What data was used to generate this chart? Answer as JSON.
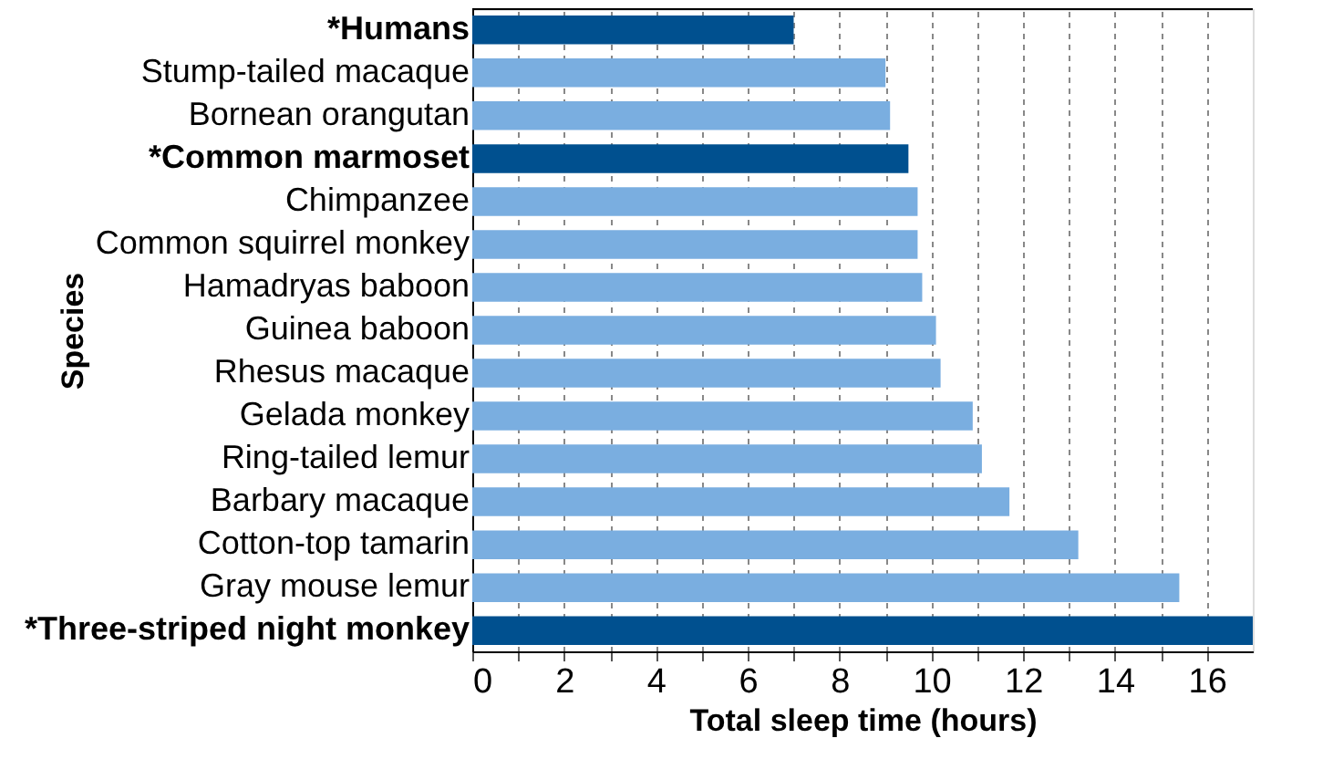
{
  "chart_data": {
    "type": "bar",
    "orientation": "horizontal",
    "xlabel": "Total sleep time (hours)",
    "ylabel": "Species",
    "categories": [
      "*Humans",
      "Stump-tailed macaque",
      "Bornean orangutan",
      "*Common marmoset",
      "Chimpanzee",
      "Common squirrel monkey",
      "Hamadryas baboon",
      "Guinea baboon",
      "Rhesus macaque",
      "Gelada monkey",
      "Ring-tailed lemur",
      "Barbary macaque",
      "Cotton-top tamarin",
      "Gray mouse lemur",
      "*Three-striped night monkey"
    ],
    "values": [
      7.0,
      9.0,
      9.1,
      9.5,
      9.7,
      9.7,
      9.8,
      10.1,
      10.2,
      10.9,
      11.1,
      11.7,
      13.2,
      15.4,
      17.0
    ],
    "colors": [
      "#00508f",
      "#7aaee0",
      "#7aaee0",
      "#00508f",
      "#7aaee0",
      "#7aaee0",
      "#7aaee0",
      "#7aaee0",
      "#7aaee0",
      "#7aaee0",
      "#7aaee0",
      "#7aaee0",
      "#7aaee0",
      "#7aaee0",
      "#00508f"
    ],
    "xlim": [
      0,
      17
    ],
    "xticks": [
      0,
      {
        "value": 1,
        "label": null
      },
      2,
      {
        "value": 3,
        "label": null
      },
      4,
      {
        "value": 5,
        "label": null
      },
      6,
      {
        "value": 7,
        "label": null
      },
      8,
      {
        "value": 9,
        "label": null
      },
      10,
      {
        "value": 11,
        "label": null
      },
      12,
      {
        "value": 13,
        "label": null
      },
      14,
      {
        "value": 15,
        "label": null
      },
      16
    ],
    "grid": "x"
  }
}
